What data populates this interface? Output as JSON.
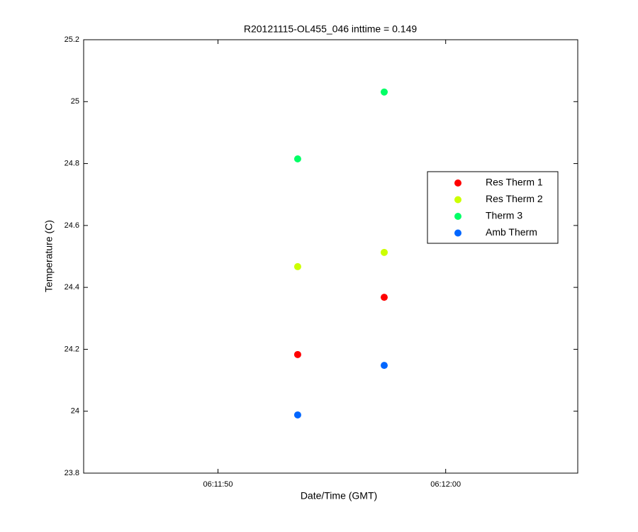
{
  "chart_data": {
    "type": "scatter",
    "title": "R20121115-OL455_046 inttime = 0.149",
    "x_label": "Date/Time (GMT)",
    "y_label": "Temperature (C)",
    "x": [
      "06:11:53.5",
      "06:11:57.3"
    ],
    "series": [
      {
        "name": "Res Therm 1",
        "color": "#ff0000",
        "values": [
          24.183,
          24.368
        ]
      },
      {
        "name": "Res Therm 2",
        "color": "#ccff00",
        "values": [
          24.467,
          24.513
        ]
      },
      {
        "name": "Therm 3",
        "color": "#00ff66",
        "values": [
          24.815,
          25.031
        ]
      },
      {
        "name": "Amb Therm",
        "color": "#0066ff",
        "values": [
          23.988,
          24.148
        ]
      }
    ],
    "xlim": [
      "06:11:44.1",
      "06:12:05.8"
    ],
    "xticks": [
      "06:11:50",
      "06:12:00"
    ],
    "ylim": [
      23.8,
      25.2
    ],
    "yticks": [
      23.8,
      24,
      24.2,
      24.4,
      24.6,
      24.8,
      25,
      25.2
    ],
    "legend": "right"
  }
}
